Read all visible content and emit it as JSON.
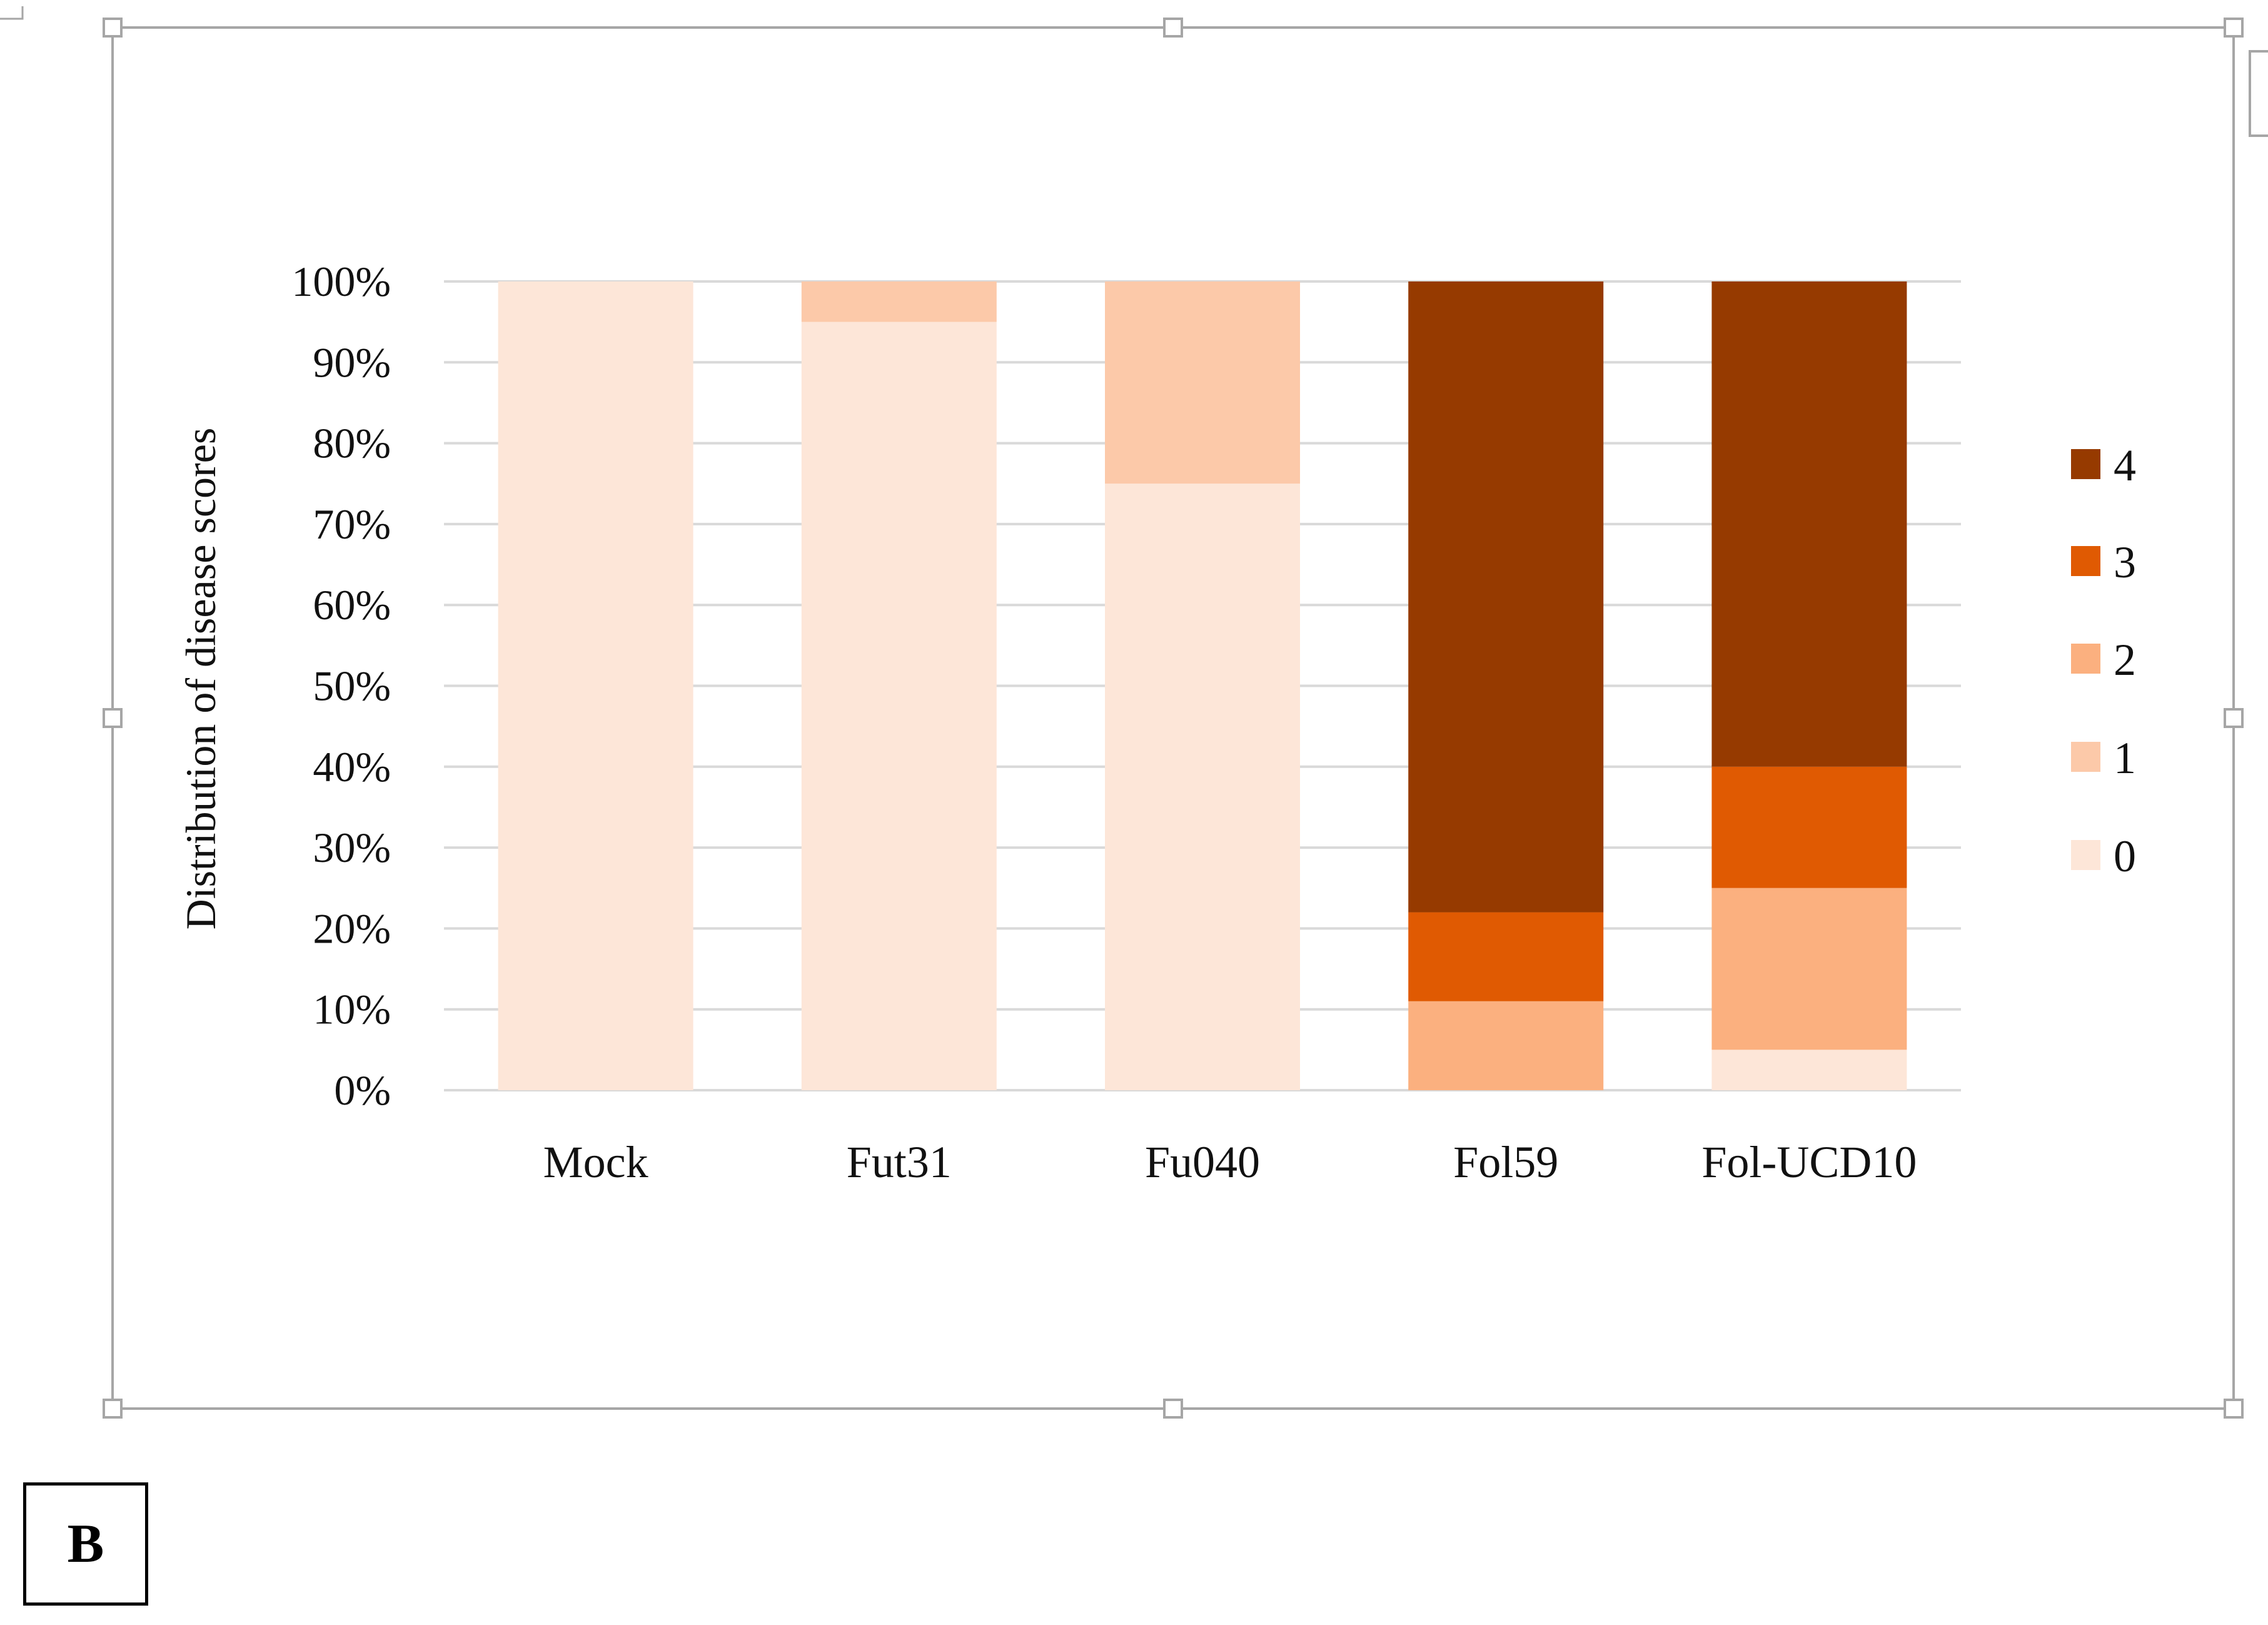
{
  "panel_label": "B",
  "colors": {
    "score_0": "#FDE6D8",
    "score_1": "#FCC9A9",
    "score_2": "#FBB07F",
    "score_3": "#E05A02",
    "score_4": "#963A00",
    "grid": "#D9D9D9",
    "frame": "#A6A6A6"
  },
  "chart_data": {
    "type": "bar",
    "stacked": true,
    "percent": true,
    "title": "",
    "xlabel": "",
    "ylabel": "Distribution of disease scores",
    "categories": [
      "Mock",
      "Fut31",
      "Fu040",
      "Fol59",
      "Fol-UCD10"
    ],
    "series": [
      {
        "name": "0",
        "color": "#FDE6D8",
        "values": [
          100,
          95,
          75,
          0,
          5
        ]
      },
      {
        "name": "1",
        "color": "#FCC9A9",
        "values": [
          0,
          5,
          25,
          0,
          0
        ]
      },
      {
        "name": "2",
        "color": "#FBB07F",
        "values": [
          0,
          0,
          0,
          11,
          20
        ]
      },
      {
        "name": "3",
        "color": "#E05A02",
        "values": [
          0,
          0,
          0,
          11,
          15
        ]
      },
      {
        "name": "4",
        "color": "#963A00",
        "values": [
          0,
          0,
          0,
          78,
          60
        ]
      }
    ],
    "ylim": [
      0,
      100
    ],
    "yticks": [
      "0%",
      "10%",
      "20%",
      "30%",
      "40%",
      "50%",
      "60%",
      "70%",
      "80%",
      "90%",
      "100%"
    ],
    "legend_order": [
      "4",
      "3",
      "2",
      "1",
      "0"
    ],
    "legend_position": "right",
    "grid": true
  }
}
